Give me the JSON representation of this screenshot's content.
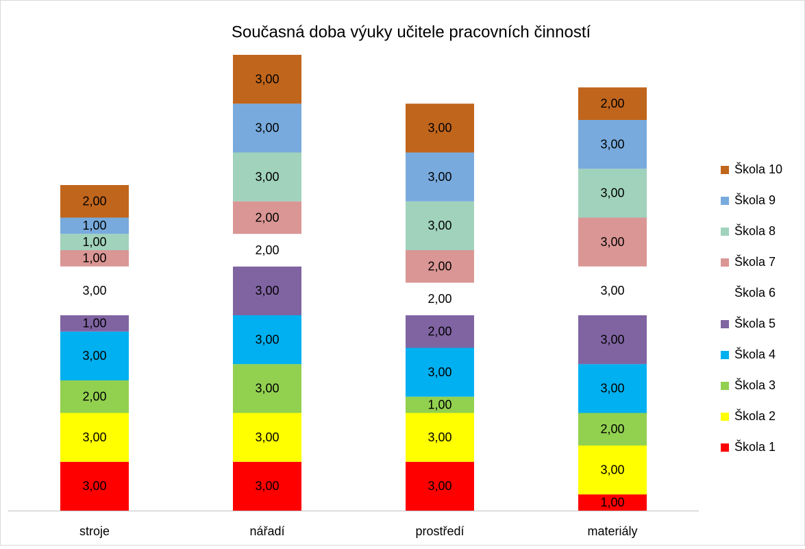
{
  "chart_data": {
    "type": "stacked_bar",
    "title": "Současná doba výuky učitele pracovních činností",
    "categories": [
      "stroje",
      "nářadí",
      "prostředí",
      "materiály"
    ],
    "series": [
      {
        "name": "Škola 1",
        "color": "#ff0000",
        "values": [
          3,
          3,
          3,
          1
        ],
        "value_labels": [
          "3,00",
          "3,00",
          "3,00",
          "1,00"
        ]
      },
      {
        "name": "Škola 2",
        "color": "#ffff00",
        "values": [
          3,
          3,
          3,
          3
        ],
        "value_labels": [
          "3,00",
          "3,00",
          "3,00",
          "3,00"
        ]
      },
      {
        "name": "Škola 3",
        "color": "#92d050",
        "values": [
          2,
          3,
          1,
          2
        ],
        "value_labels": [
          "2,00",
          "3,00",
          "1,00",
          "2,00"
        ]
      },
      {
        "name": "Škola 4",
        "color": "#00b0f0",
        "values": [
          3,
          3,
          3,
          3
        ],
        "value_labels": [
          "3,00",
          "3,00",
          "3,00",
          "3,00"
        ]
      },
      {
        "name": "Škola 5",
        "color": "#8064a2",
        "values": [
          1,
          3,
          2,
          3
        ],
        "value_labels": [
          "1,00",
          "3,00",
          "2,00",
          "3,00"
        ]
      },
      {
        "name": "Škola 6",
        "color": "#ffffff",
        "values": [
          3,
          2,
          2,
          3
        ],
        "value_labels": [
          "3,00",
          "2,00",
          "2,00",
          "3,00"
        ]
      },
      {
        "name": "Škola 7",
        "color": "#da9694",
        "values": [
          1,
          2,
          2,
          3
        ],
        "value_labels": [
          "1,00",
          "2,00",
          "2,00",
          "3,00"
        ]
      },
      {
        "name": "Škola 8",
        "color": "#a0d2bc",
        "values": [
          1,
          3,
          3,
          3
        ],
        "value_labels": [
          "1,00",
          "3,00",
          "3,00",
          "3,00"
        ]
      },
      {
        "name": "Škola 9",
        "color": "#78aadd",
        "values": [
          1,
          3,
          3,
          3
        ],
        "value_labels": [
          "1,00",
          "3,00",
          "3,00",
          "3,00"
        ]
      },
      {
        "name": "Škola 10",
        "color": "#c0651c",
        "values": [
          2,
          3,
          3,
          2
        ],
        "value_labels": [
          "2,00",
          "3,00",
          "3,00",
          "2,00"
        ]
      }
    ],
    "legend": "right"
  }
}
